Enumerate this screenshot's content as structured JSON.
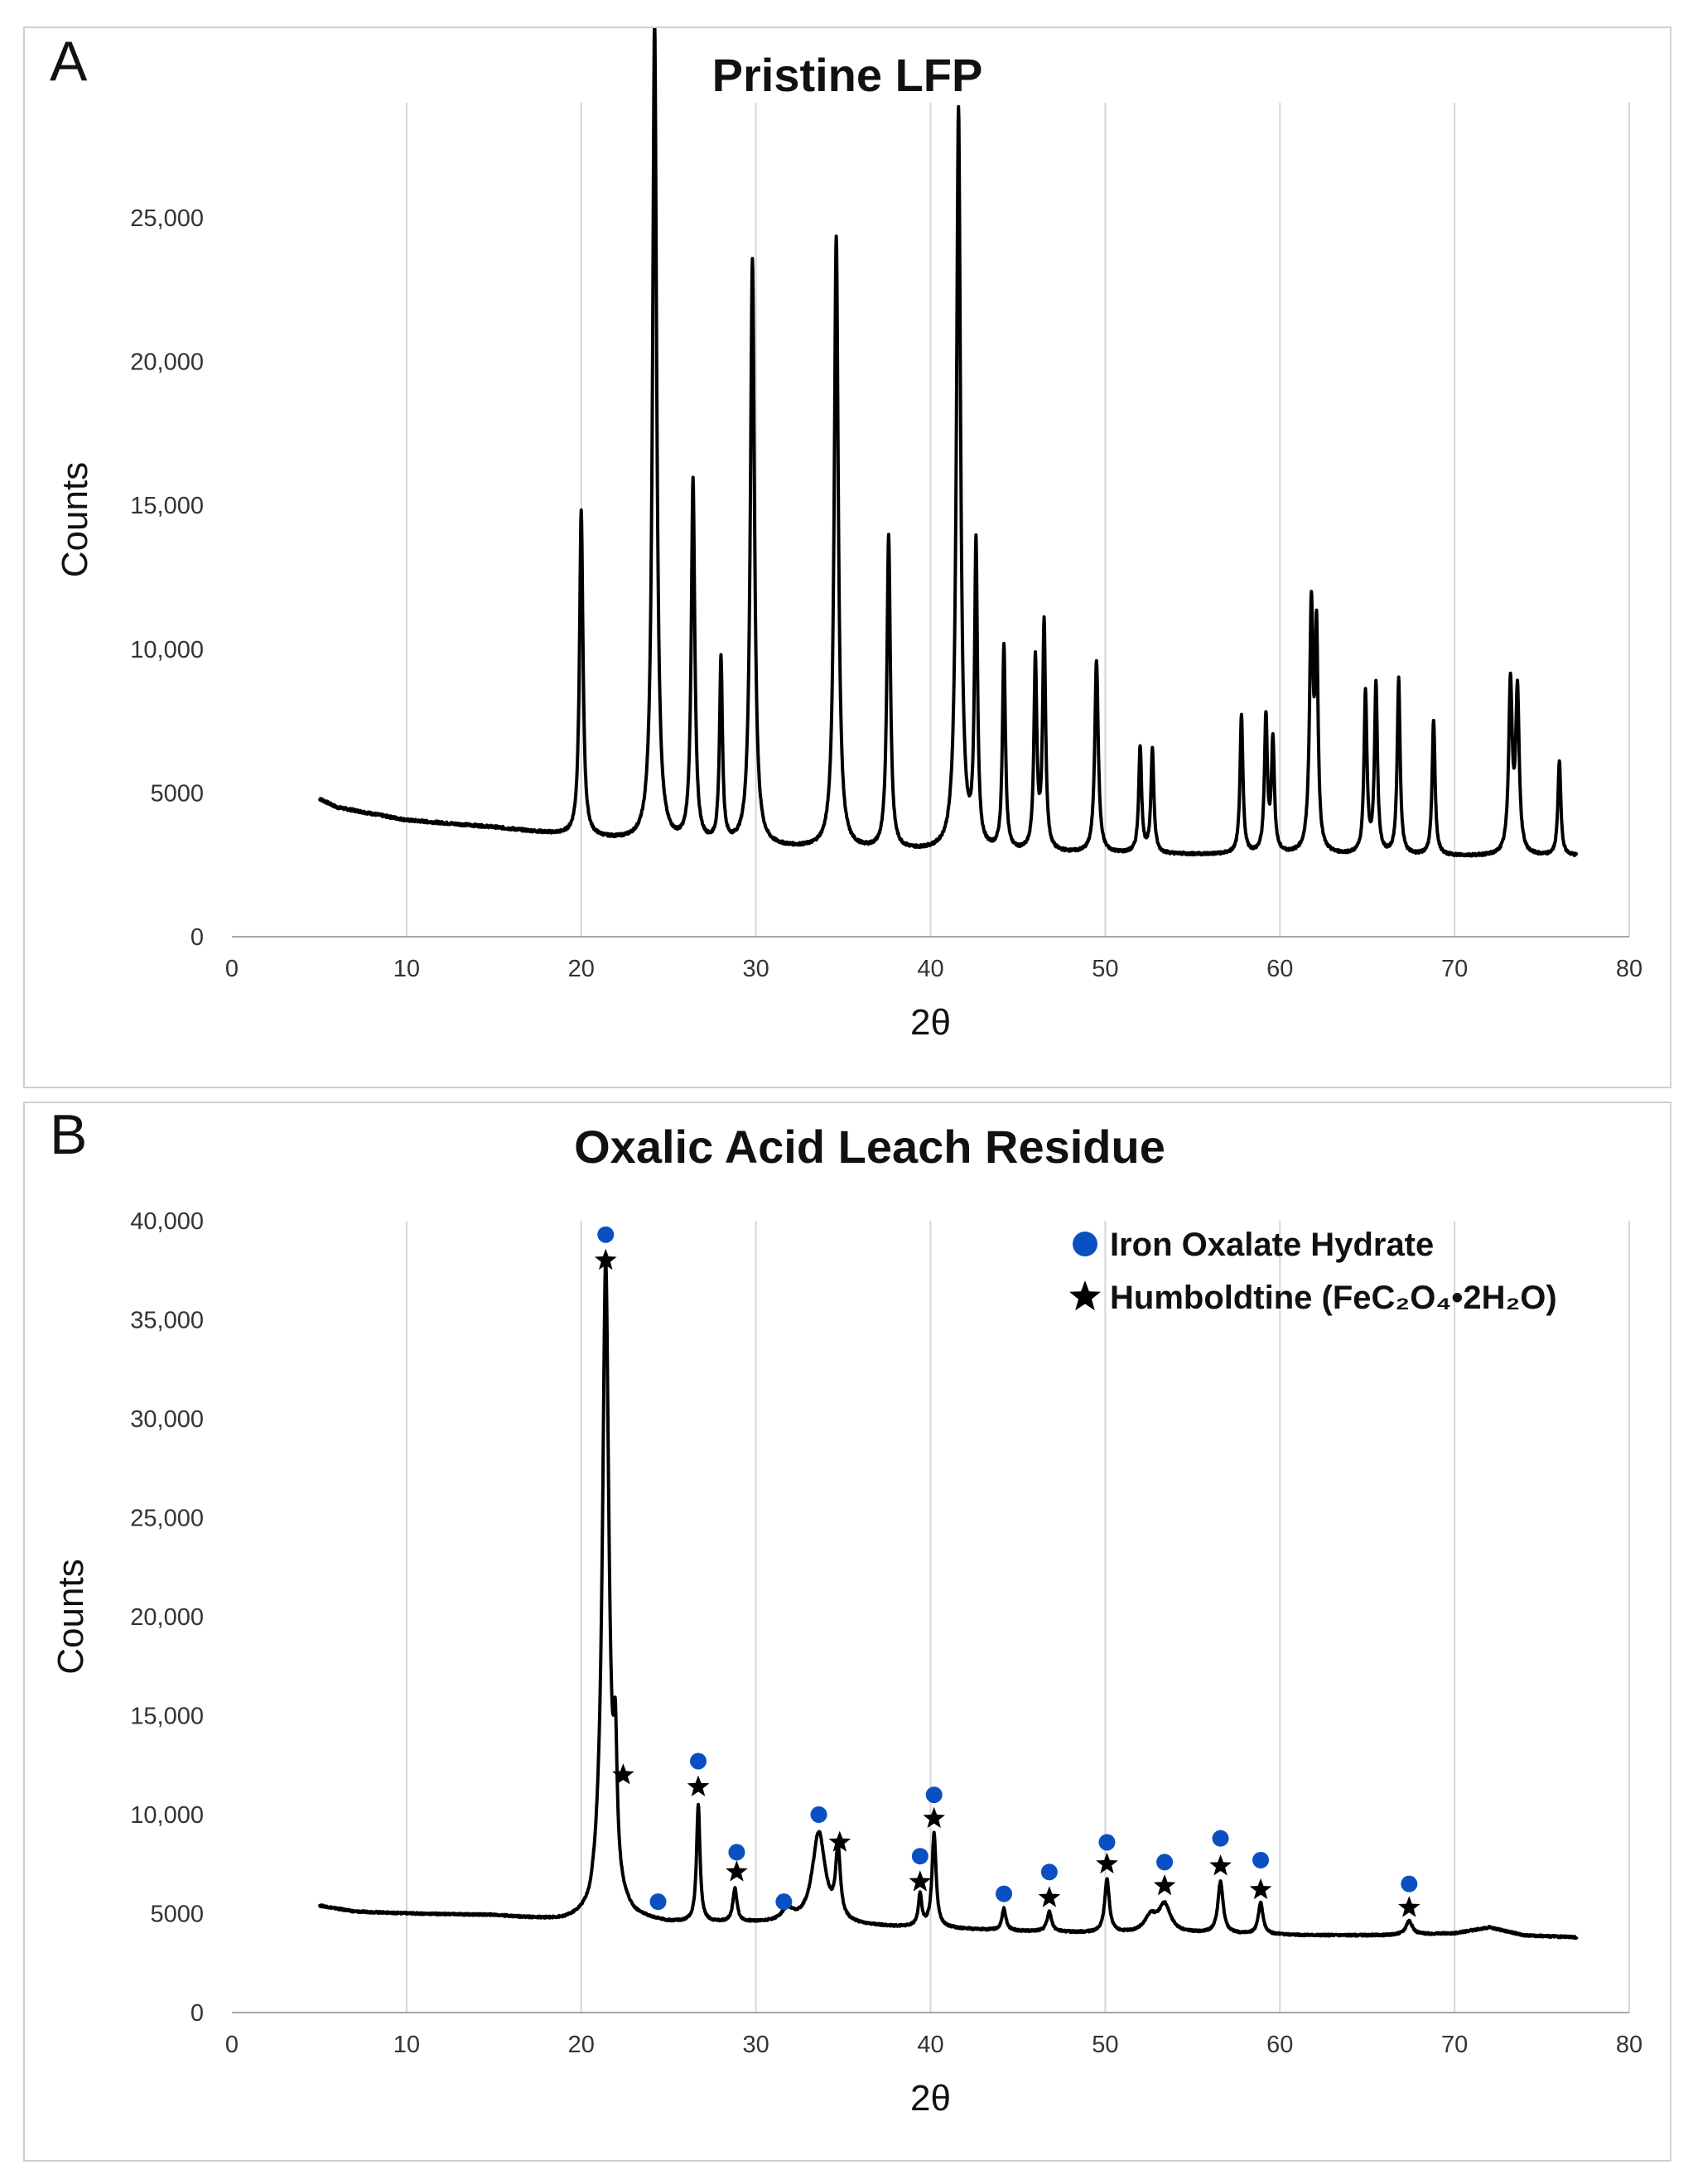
{
  "figure": {
    "panel_a_letter": "A",
    "panel_b_letter": "B"
  },
  "chart_data": [
    {
      "id": "A",
      "type": "line",
      "title": "Pristine LFP",
      "xlabel": "2θ",
      "ylabel": "Counts",
      "xlim": [
        0,
        80
      ],
      "ylim": [
        0,
        29000
      ],
      "x_ticks": [
        0,
        10,
        20,
        30,
        40,
        50,
        60,
        70,
        80
      ],
      "y_ticks": [
        0,
        5000,
        10000,
        15000,
        20000,
        25000
      ],
      "y_tick_labels": [
        "0",
        "5000",
        "10,000",
        "15,000",
        "20,000",
        "25,000"
      ],
      "grid": "vertical",
      "baseline": [
        [
          5,
          4800
        ],
        [
          6,
          4500
        ],
        [
          10,
          4050
        ],
        [
          15,
          3800
        ],
        [
          20,
          3450
        ],
        [
          25,
          3200
        ],
        [
          30,
          3100
        ],
        [
          35,
          3000
        ],
        [
          40,
          2950
        ],
        [
          45,
          2900
        ],
        [
          50,
          2880
        ],
        [
          55,
          2850
        ],
        [
          60,
          2850
        ],
        [
          65,
          2820
        ],
        [
          70,
          2800
        ],
        [
          75,
          2800
        ],
        [
          77,
          2800
        ]
      ],
      "peaks": [
        {
          "x": 20.0,
          "y": 11300,
          "w": 0.12
        },
        {
          "x": 24.2,
          "y": 28600,
          "w": 0.14
        },
        {
          "x": 26.4,
          "y": 12600,
          "w": 0.12
        },
        {
          "x": 28.0,
          "y": 6400,
          "w": 0.1
        },
        {
          "x": 29.8,
          "y": 20400,
          "w": 0.14
        },
        {
          "x": 34.6,
          "y": 21300,
          "w": 0.14
        },
        {
          "x": 37.6,
          "y": 10900,
          "w": 0.12
        },
        {
          "x": 41.6,
          "y": 25800,
          "w": 0.14
        },
        {
          "x": 42.6,
          "y": 10500,
          "w": 0.1
        },
        {
          "x": 44.2,
          "y": 7100,
          "w": 0.1
        },
        {
          "x": 46.0,
          "y": 6600,
          "w": 0.1
        },
        {
          "x": 46.5,
          "y": 7900,
          "w": 0.1
        },
        {
          "x": 49.5,
          "y": 6700,
          "w": 0.12
        },
        {
          "x": 52.0,
          "y": 3700,
          "w": 0.1
        },
        {
          "x": 52.7,
          "y": 3600,
          "w": 0.1
        },
        {
          "x": 57.8,
          "y": 4800,
          "w": 0.1
        },
        {
          "x": 59.2,
          "y": 4700,
          "w": 0.1
        },
        {
          "x": 59.6,
          "y": 3900,
          "w": 0.1
        },
        {
          "x": 61.8,
          "y": 8400,
          "w": 0.12
        },
        {
          "x": 62.1,
          "y": 7300,
          "w": 0.1
        },
        {
          "x": 64.9,
          "y": 5600,
          "w": 0.1
        },
        {
          "x": 65.5,
          "y": 5900,
          "w": 0.1
        },
        {
          "x": 66.8,
          "y": 6100,
          "w": 0.1
        },
        {
          "x": 68.8,
          "y": 4700,
          "w": 0.1
        },
        {
          "x": 73.2,
          "y": 5900,
          "w": 0.12
        },
        {
          "x": 73.6,
          "y": 5600,
          "w": 0.12
        },
        {
          "x": 76.0,
          "y": 3300,
          "w": 0.1
        }
      ]
    },
    {
      "id": "B",
      "type": "line",
      "title": "Oxalic Acid Leach Residue",
      "xlabel": "2θ",
      "ylabel": "Counts",
      "xlim": [
        0,
        80
      ],
      "ylim": [
        0,
        40000
      ],
      "x_ticks": [
        0,
        10,
        20,
        30,
        40,
        50,
        60,
        70,
        80
      ],
      "y_ticks": [
        0,
        5000,
        10000,
        15000,
        20000,
        25000,
        30000,
        35000,
        40000
      ],
      "y_tick_labels": [
        "0",
        "5000",
        "10,000",
        "15,000",
        "20,000",
        "25,000",
        "30,000",
        "35,000",
        "40,000"
      ],
      "grid": "vertical",
      "baseline": [
        [
          5,
          5400
        ],
        [
          7,
          5100
        ],
        [
          10,
          5000
        ],
        [
          15,
          4900
        ],
        [
          19,
          4600
        ],
        [
          20.5,
          4700
        ],
        [
          21,
          5600
        ],
        [
          23,
          4700
        ],
        [
          25,
          4500
        ],
        [
          30,
          4500
        ],
        [
          35,
          4400
        ],
        [
          38,
          4300
        ],
        [
          40,
          4300
        ],
        [
          42,
          4200
        ],
        [
          45,
          4100
        ],
        [
          50,
          4000
        ],
        [
          55,
          4000
        ],
        [
          58,
          3950
        ],
        [
          62,
          3900
        ],
        [
          66,
          3900
        ],
        [
          70,
          4000
        ],
        [
          72,
          4300
        ],
        [
          74,
          3900
        ],
        [
          77,
          3800
        ]
      ],
      "peaks": [
        {
          "x": 21.4,
          "y": 32300,
          "w": 0.22
        },
        {
          "x": 21.95,
          "y": 6200,
          "w": 0.12
        },
        {
          "x": 26.7,
          "y": 5900,
          "w": 0.12
        },
        {
          "x": 28.8,
          "y": 1700,
          "w": 0.14
        },
        {
          "x": 31.8,
          "y": 600,
          "w": 0.4
        },
        {
          "x": 33.6,
          "y": 4600,
          "w": 0.45
        },
        {
          "x": 34.7,
          "y": 3500,
          "w": 0.16
        },
        {
          "x": 39.4,
          "y": 1600,
          "w": 0.12
        },
        {
          "x": 40.2,
          "y": 4700,
          "w": 0.14
        },
        {
          "x": 44.2,
          "y": 1100,
          "w": 0.14
        },
        {
          "x": 46.8,
          "y": 1000,
          "w": 0.16
        },
        {
          "x": 50.1,
          "y": 2700,
          "w": 0.16
        },
        {
          "x": 52.6,
          "y": 800,
          "w": 0.4
        },
        {
          "x": 53.4,
          "y": 1400,
          "w": 0.4
        },
        {
          "x": 56.6,
          "y": 2600,
          "w": 0.18
        },
        {
          "x": 58.9,
          "y": 1600,
          "w": 0.16
        },
        {
          "x": 67.4,
          "y": 700,
          "w": 0.22
        }
      ],
      "legend": {
        "position": "top-right",
        "entries": [
          {
            "label": "Iron Oxalate Hydrate",
            "marker": "blue-circle-icon",
            "color": "#0a50c2"
          },
          {
            "label": "Humboldtine (FeC₂O₄•2H₂O)",
            "marker": "black-star-icon",
            "color": "#000000"
          }
        ]
      },
      "circle_markers": [
        [
          21.4,
          39300
        ],
        [
          24.4,
          5600
        ],
        [
          26.7,
          12700
        ],
        [
          28.9,
          8100
        ],
        [
          31.6,
          5600
        ],
        [
          33.6,
          10000
        ],
        [
          39.4,
          7900
        ],
        [
          40.2,
          11000
        ],
        [
          44.2,
          6000
        ],
        [
          46.8,
          7100
        ],
        [
          50.1,
          8600
        ],
        [
          53.4,
          7600
        ],
        [
          56.6,
          8800
        ],
        [
          58.9,
          7700
        ],
        [
          67.4,
          6500
        ]
      ],
      "star_markers": [
        [
          21.4,
          38000
        ],
        [
          22.4,
          12000
        ],
        [
          26.7,
          11400
        ],
        [
          28.9,
          7100
        ],
        [
          34.8,
          8600
        ],
        [
          39.4,
          6600
        ],
        [
          40.2,
          9800
        ],
        [
          46.8,
          5800
        ],
        [
          50.1,
          7500
        ],
        [
          53.4,
          6400
        ],
        [
          56.6,
          7400
        ],
        [
          58.9,
          6200
        ],
        [
          67.4,
          5300
        ]
      ]
    }
  ]
}
